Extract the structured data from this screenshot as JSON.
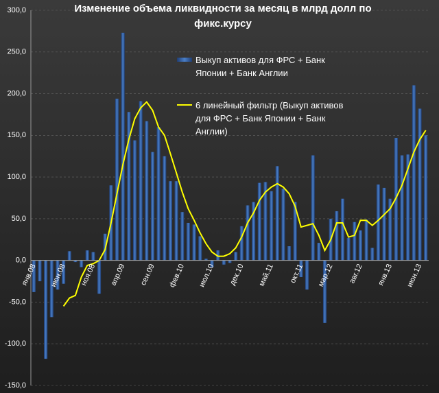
{
  "chart_data": {
    "type": "bar",
    "title": "Изменение объема ликвидности за месяц в млрд долл по фикс.курсу",
    "categories": [
      "янв.08",
      null,
      null,
      null,
      null,
      "июн.08",
      null,
      null,
      null,
      null,
      "ноя.08",
      null,
      null,
      null,
      null,
      "апр.09",
      null,
      null,
      null,
      null,
      "сен.09",
      null,
      null,
      null,
      null,
      "фев.10",
      null,
      null,
      null,
      null,
      "июл.10",
      null,
      null,
      null,
      null,
      "дек.10",
      null,
      null,
      null,
      null,
      "май.11",
      null,
      null,
      null,
      null,
      "окт.11",
      null,
      null,
      null,
      null,
      "мар.12",
      null,
      null,
      null,
      null,
      "авг.12",
      null,
      null,
      null,
      null,
      "янв.13",
      null,
      null,
      null,
      null,
      "июн.13",
      null
    ],
    "series": [
      {
        "name": "Выкуп активов для ФРС + Банк Японии + Банк Англии",
        "type": "bar",
        "color": "#4a7fc8",
        "values": [
          -38,
          -25,
          -118,
          -68,
          -35,
          -28,
          11,
          -2,
          -8,
          12,
          10,
          -40,
          32,
          90,
          194,
          273,
          178,
          144,
          191,
          167,
          130,
          160,
          125,
          95,
          95,
          58,
          45,
          43,
          29,
          2,
          -8,
          12,
          -5,
          -3,
          10,
          41,
          66,
          70,
          93,
          94,
          83,
          113,
          86,
          17,
          70,
          -20,
          -35,
          126,
          21,
          -75,
          50,
          59,
          74,
          27,
          46,
          36,
          49,
          15,
          91,
          87,
          74,
          147,
          126,
          127,
          210,
          182,
          150
        ]
      },
      {
        "name": "6 линейный фильтр (Выкуп активов для ФРС + Банк Японии + Банк Англии)",
        "type": "line",
        "color": "#ffff00",
        "values": [
          null,
          null,
          null,
          null,
          null,
          -55,
          -45,
          -42,
          -20,
          -6,
          -4,
          0,
          13,
          45,
          80,
          115,
          145,
          170,
          183,
          190,
          180,
          160,
          150,
          128,
          105,
          82,
          62,
          48,
          33,
          20,
          10,
          5,
          5,
          8,
          15,
          28,
          45,
          57,
          72,
          82,
          88,
          92,
          88,
          80,
          65,
          40,
          42,
          44,
          30,
          12,
          25,
          45,
          45,
          28,
          30,
          48,
          48,
          42,
          48,
          55,
          62,
          75,
          90,
          110,
          130,
          145,
          156
        ]
      }
    ],
    "ylim": [
      -150,
      300
    ],
    "yticks": [
      {
        "value": -150,
        "label": "-150,0"
      },
      {
        "value": -100,
        "label": "-100,0"
      },
      {
        "value": -50,
        "label": "-50,0"
      },
      {
        "value": 0,
        "label": "0,0"
      },
      {
        "value": 50,
        "label": "50,0"
      },
      {
        "value": 100,
        "label": "100,0"
      },
      {
        "value": 150,
        "label": "150,0"
      },
      {
        "value": 200,
        "label": "200,0"
      },
      {
        "value": 250,
        "label": "250,0"
      },
      {
        "value": 300,
        "label": "300,0"
      }
    ],
    "grid": true
  }
}
